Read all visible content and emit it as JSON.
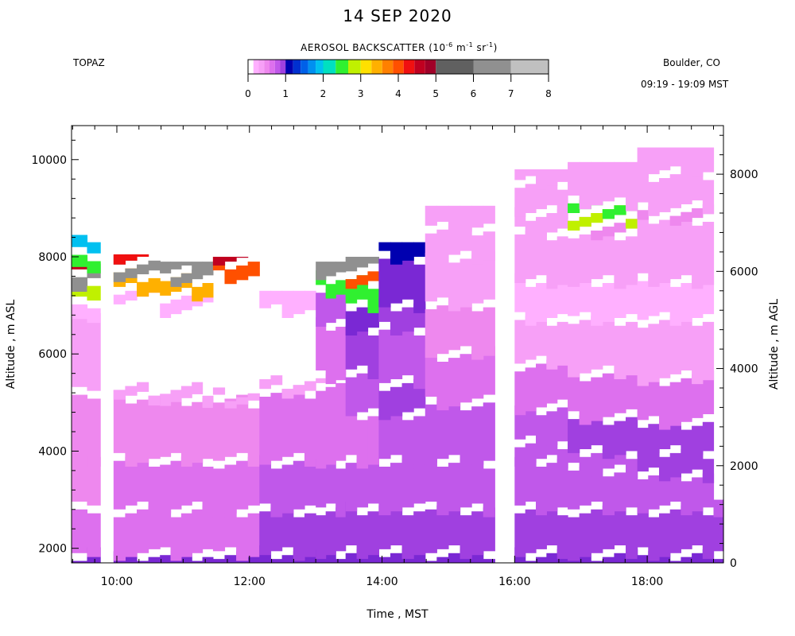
{
  "chart_data": {
    "type": "heatmap",
    "title": "14 SEP 2020",
    "site": "TOPAZ",
    "location": "Boulder, CO",
    "time_range": "09:19 - 19:09 MST",
    "colorbar": {
      "title_prefix": "AEROSOL BACKSCATTER (10",
      "title_exp1": "-6",
      "title_mid": " m",
      "title_exp2": "-1",
      "title_mid2": " sr",
      "title_exp3": "-1",
      "title_suffix": ")",
      "range": [
        0,
        8
      ],
      "ticks": [
        "0",
        "1",
        "2",
        "3",
        "4",
        "5",
        "6",
        "7",
        "8"
      ],
      "colors": [
        "#ffffff",
        "#ffb0ff",
        "#f7a0f7",
        "#ee88ee",
        "#dd70ee",
        "#c058ea",
        "#a040e0",
        "#7a28d4",
        "#0000b0",
        "#0030d0",
        "#0060e8",
        "#0090f0",
        "#00c0f0",
        "#00e0c0",
        "#30f030",
        "#c0f000",
        "#ffe000",
        "#ffb000",
        "#ff8000",
        "#ff5000",
        "#f01010",
        "#c00020",
        "#a00028",
        "#606060",
        "#909090",
        "#c0c0c0"
      ]
    },
    "x_axis": {
      "label": "Time , MST",
      "range": [
        9.3167,
        19.15
      ],
      "ticks": [
        10,
        12,
        14,
        16,
        18
      ],
      "tick_labels": [
        "10:00",
        "12:00",
        "14:00",
        "16:00",
        "18:00"
      ]
    },
    "y_axis_left": {
      "label": "Altitude , m ASL",
      "range": [
        1700,
        10700
      ],
      "ticks": [
        2000,
        4000,
        6000,
        8000,
        10000
      ],
      "tick_labels": [
        "2000",
        "4000",
        "6000",
        "8000",
        "10000"
      ]
    },
    "y_axis_right": {
      "label": "Altitude , m AGL",
      "ticks": [
        0,
        2000,
        4000,
        6000,
        8000
      ],
      "tick_labels": [
        "0",
        "2000",
        "4000",
        "6000",
        "8000"
      ]
    },
    "segments": [
      {
        "start": 9.32,
        "end": 9.55,
        "top": 8450,
        "levels": [
          [
            1700,
            1,
            5.0
          ],
          [
            1900,
            0.7,
            5.2
          ],
          [
            2800,
            0.5,
            3.0
          ],
          [
            3800,
            0.5,
            3.8
          ],
          [
            5200,
            0.3,
            2.5
          ],
          [
            6800,
            0.2,
            1.0
          ],
          [
            7100,
            3.0,
            1.8
          ],
          [
            7400,
            6.5,
            0.8
          ],
          [
            7700,
            4.5,
            1.0
          ],
          [
            7950,
            2.5,
            1.5
          ],
          [
            8200,
            2.0,
            0.8
          ]
        ]
      },
      {
        "start": 9.55,
        "end": 9.75,
        "top": 8300,
        "levels": [
          [
            1700,
            1,
            5.0
          ],
          [
            1900,
            0.7,
            5.2
          ],
          [
            2800,
            0.5,
            3.0
          ],
          [
            3800,
            0.5,
            3.8
          ],
          [
            5200,
            0.3,
            2.5
          ],
          [
            6800,
            0.2,
            1.0
          ],
          [
            7100,
            3.0,
            1.8
          ],
          [
            7400,
            6.2,
            0.6
          ],
          [
            7700,
            2.5,
            1.0
          ],
          [
            7950,
            2.0,
            0.8
          ]
        ]
      },
      {
        "start": 9.95,
        "end": 10.65,
        "top": 8050,
        "levels": [
          [
            1700,
            1,
            5.0
          ],
          [
            1900,
            0.7,
            5.2
          ],
          [
            2800,
            0.6,
            3.0
          ],
          [
            3800,
            0.5,
            3.8
          ],
          [
            5100,
            0.3,
            2.5
          ],
          [
            5300,
            0.0,
            1.0
          ],
          [
            7100,
            0.2,
            0.8
          ],
          [
            7300,
            3.5,
            1.8
          ],
          [
            7600,
            6.5,
            1.0
          ],
          [
            7800,
            6.0,
            1.0
          ],
          [
            8000,
            4.2,
            0.8
          ]
        ]
      },
      {
        "start": 10.65,
        "end": 11.45,
        "top": 7900,
        "levels": [
          [
            1700,
            1,
            5.0
          ],
          [
            1900,
            0.7,
            5.2
          ],
          [
            2800,
            0.6,
            3.0
          ],
          [
            3800,
            0.5,
            3.8
          ],
          [
            5050,
            0.3,
            2.2
          ],
          [
            5300,
            0.0,
            1.0
          ],
          [
            6900,
            0.2,
            0.8
          ],
          [
            7200,
            3.5,
            1.8
          ],
          [
            7500,
            6.5,
            1.0
          ],
          [
            7700,
            6.0,
            1.0
          ]
        ]
      },
      {
        "start": 11.45,
        "end": 12.15,
        "top": 8000,
        "levels": [
          [
            1700,
            1,
            5.0
          ],
          [
            1900,
            0.7,
            5.2
          ],
          [
            2800,
            0.6,
            3.0
          ],
          [
            3800,
            0.5,
            3.8
          ],
          [
            5000,
            0.3,
            2.0
          ],
          [
            5150,
            0.0,
            1.0
          ],
          [
            7600,
            4.0,
            1.8
          ],
          [
            7900,
            4.5,
            0.5
          ]
        ]
      },
      {
        "start": 12.15,
        "end": 13.0,
        "top": 7300,
        "levels": [
          [
            1700,
            1,
            6.0
          ],
          [
            1900,
            0.9,
            5.6
          ],
          [
            2800,
            0.8,
            4.5
          ],
          [
            3800,
            0.7,
            4.0
          ],
          [
            5200,
            0.3,
            2.5
          ],
          [
            5400,
            0.0,
            1.0
          ],
          [
            6900,
            0.2,
            1.0
          ]
        ]
      },
      {
        "start": 13.0,
        "end": 13.45,
        "top": 7900,
        "levels": [
          [
            1700,
            1,
            7.0
          ],
          [
            1900,
            0.9,
            6.0
          ],
          [
            2800,
            0.8,
            4.5
          ],
          [
            3800,
            0.7,
            4.0
          ],
          [
            5400,
            0.3,
            3.0
          ],
          [
            5500,
            0.6,
            6.5
          ],
          [
            6600,
            0.8,
            7.4
          ],
          [
            7300,
            2.5,
            2.0
          ],
          [
            7600,
            6.0,
            1.0
          ]
        ]
      },
      {
        "start": 13.45,
        "end": 13.95,
        "top": 8000,
        "levels": [
          [
            1700,
            1,
            7.0
          ],
          [
            1900,
            0.9,
            6.0
          ],
          [
            2800,
            0.8,
            4.5
          ],
          [
            3800,
            0.7,
            5.0
          ],
          [
            4800,
            0.8,
            7.5
          ],
          [
            5600,
            0.9,
            9.0
          ],
          [
            6500,
            1.0,
            10.5
          ],
          [
            7000,
            2.5,
            12.0
          ],
          [
            7500,
            4.0,
            3.0
          ],
          [
            7700,
            6.0,
            0.8
          ]
        ]
      },
      {
        "start": 13.95,
        "end": 14.65,
        "top": 8300,
        "levels": [
          [
            1700,
            1,
            7.0
          ],
          [
            1900,
            0.9,
            6.0
          ],
          [
            2800,
            0.8,
            5.0
          ],
          [
            3800,
            0.8,
            6.0
          ],
          [
            4800,
            0.9,
            7.0
          ],
          [
            5400,
            0.8,
            7.5
          ],
          [
            6500,
            0.9,
            8.5
          ],
          [
            7000,
            1.0,
            10.0
          ],
          [
            8000,
            1.2,
            9.0
          ]
        ]
      },
      {
        "start": 14.65,
        "end": 15.7,
        "top": 9050,
        "levels": [
          [
            1700,
            1,
            7.0
          ],
          [
            1900,
            0.9,
            6.2
          ],
          [
            2800,
            0.8,
            5.0
          ],
          [
            3800,
            0.8,
            5.5
          ],
          [
            5000,
            0.7,
            5.0
          ],
          [
            6000,
            0.5,
            3.8
          ],
          [
            7000,
            0.4,
            3.0
          ],
          [
            8000,
            0.3,
            2.6
          ],
          [
            8600,
            0.3,
            3.0
          ]
        ]
      },
      {
        "start": 16.0,
        "end": 16.8,
        "top": 9800,
        "levels": [
          [
            1700,
            1,
            7.5
          ],
          [
            1900,
            0.9,
            6.0
          ],
          [
            2800,
            0.8,
            5.0
          ],
          [
            3800,
            0.8,
            6.5
          ],
          [
            4200,
            0.8,
            8.0
          ],
          [
            4900,
            0.7,
            6.0
          ],
          [
            5800,
            0.3,
            2.0
          ],
          [
            6700,
            0.2,
            1.5
          ],
          [
            7500,
            0.3,
            2.0
          ],
          [
            8500,
            0.4,
            4.5
          ],
          [
            8900,
            0.4,
            3.5
          ],
          [
            9500,
            0.3,
            3.0
          ]
        ]
      },
      {
        "start": 16.8,
        "end": 17.85,
        "top": 9950,
        "levels": [
          [
            1700,
            1,
            7.5
          ],
          [
            1900,
            0.9,
            6.0
          ],
          [
            2800,
            0.8,
            5.0
          ],
          [
            3600,
            0.8,
            6.0
          ],
          [
            4000,
            0.9,
            8.0
          ],
          [
            4700,
            0.7,
            6.0
          ],
          [
            5600,
            0.3,
            2.0
          ],
          [
            6700,
            0.2,
            1.5
          ],
          [
            7500,
            0.3,
            2.0
          ],
          [
            8500,
            0.5,
            4.5
          ],
          [
            8700,
            3.0,
            1.0
          ],
          [
            8900,
            2.5,
            0.6
          ],
          [
            9100,
            0.4,
            3.5
          ]
        ]
      },
      {
        "start": 17.85,
        "end": 19.0,
        "top": 10250,
        "levels": [
          [
            1700,
            1,
            7.5
          ],
          [
            1900,
            0.9,
            6.0
          ],
          [
            2800,
            0.8,
            5.0
          ],
          [
            3500,
            0.9,
            7.5
          ],
          [
            4000,
            0.9,
            8.5
          ],
          [
            4600,
            0.7,
            6.0
          ],
          [
            5500,
            0.3,
            2.0
          ],
          [
            6700,
            0.2,
            1.5
          ],
          [
            7500,
            0.3,
            2.2
          ],
          [
            8800,
            0.5,
            4.5
          ],
          [
            9000,
            0.4,
            3.5
          ],
          [
            9700,
            0.3,
            3.0
          ]
        ]
      },
      {
        "start": 19.0,
        "end": 19.15,
        "top": 3000,
        "levels": [
          [
            1700,
            1,
            7.5
          ],
          [
            1900,
            0.9,
            6.0
          ],
          [
            2800,
            0.8,
            5.0
          ]
        ]
      }
    ]
  }
}
